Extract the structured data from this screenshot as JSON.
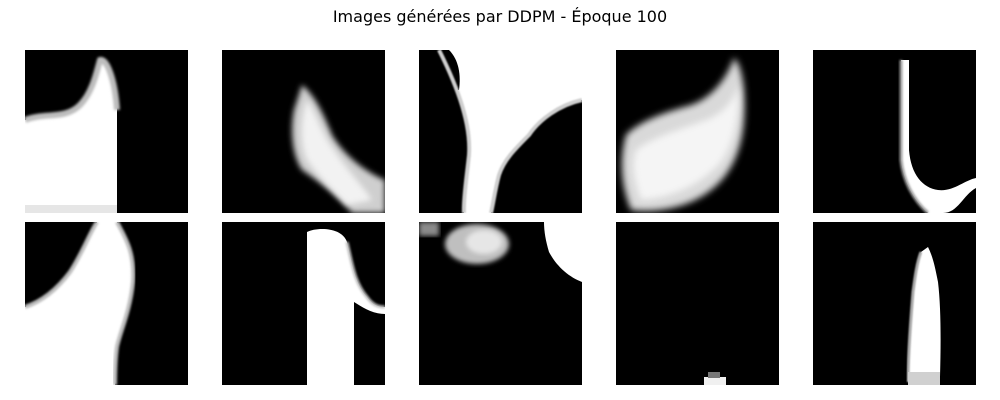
{
  "figure": {
    "title": "Images générées par DDPM - Époque 100"
  },
  "samples": [
    {
      "row": 1,
      "col": 1,
      "description": "generated-sample"
    },
    {
      "row": 1,
      "col": 2,
      "description": "generated-sample"
    },
    {
      "row": 1,
      "col": 3,
      "description": "generated-sample"
    },
    {
      "row": 1,
      "col": 4,
      "description": "generated-sample"
    },
    {
      "row": 1,
      "col": 5,
      "description": "generated-sample"
    },
    {
      "row": 2,
      "col": 1,
      "description": "generated-sample"
    },
    {
      "row": 2,
      "col": 2,
      "description": "generated-sample"
    },
    {
      "row": 2,
      "col": 3,
      "description": "generated-sample"
    },
    {
      "row": 2,
      "col": 4,
      "description": "generated-sample"
    },
    {
      "row": 2,
      "col": 5,
      "description": "generated-sample"
    }
  ],
  "colors": {
    "background": "#ffffff",
    "pixel_dark": "#000000",
    "pixel_light": "#ffffff"
  }
}
